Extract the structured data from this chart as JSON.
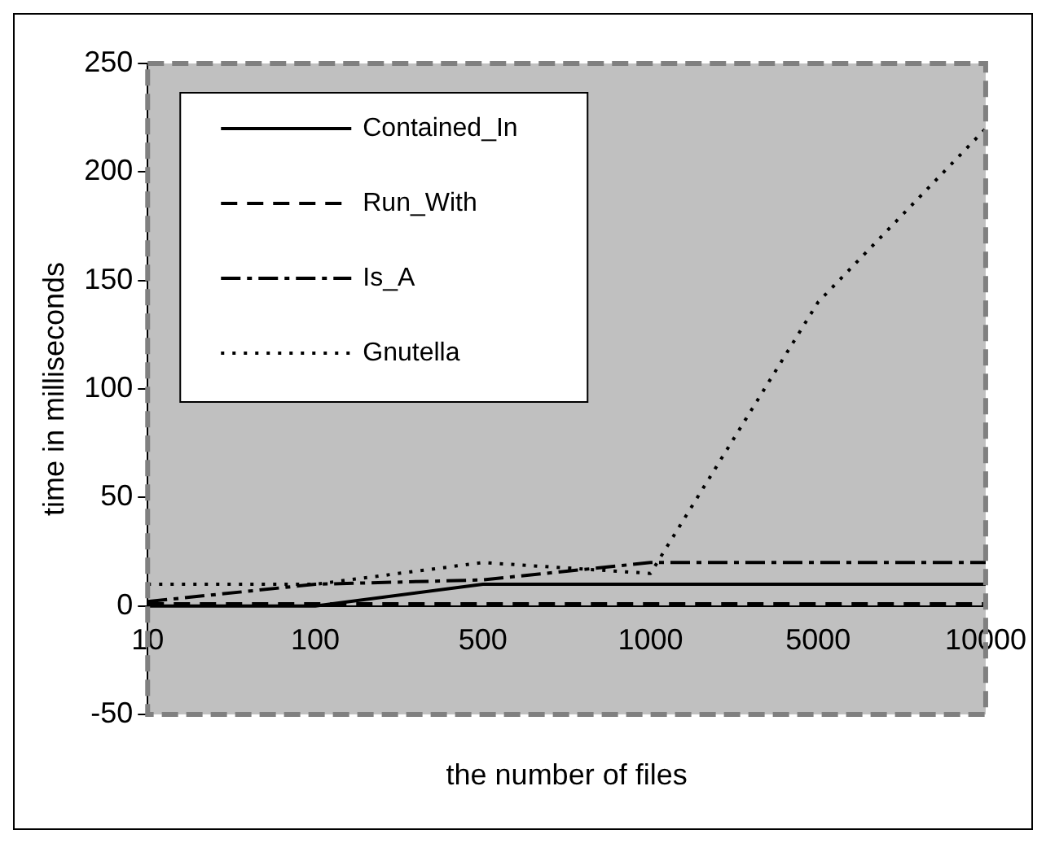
{
  "chart_data": {
    "type": "line",
    "xlabel": "the number of files",
    "ylabel": "time in milliseconds",
    "categories": [
      "10",
      "100",
      "500",
      "1000",
      "5000",
      "10000"
    ],
    "ylim": [
      -50,
      250
    ],
    "yticks": [
      -50,
      0,
      50,
      100,
      150,
      200,
      250
    ],
    "grid": false,
    "legend": "top left",
    "marker": "none",
    "series": [
      {
        "name": "Contained_In",
        "color": "#000000",
        "line_style": "solid",
        "values": [
          0,
          0,
          10,
          10,
          10,
          10
        ]
      },
      {
        "name": "Run_With",
        "color": "#000000",
        "line_style": "dashed",
        "values": [
          1,
          1,
          1,
          1,
          1,
          1
        ]
      },
      {
        "name": "Is_A",
        "color": "#000000",
        "line_style": "dashdot",
        "values": [
          2,
          10,
          12,
          20,
          20,
          20
        ]
      },
      {
        "name": "Gnutella",
        "color": "#000000",
        "line_style": "dotted",
        "values": [
          10,
          10,
          20,
          15,
          140,
          220
        ]
      }
    ]
  }
}
